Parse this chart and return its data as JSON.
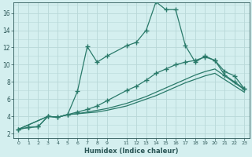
{
  "xlabel": "Humidex (Indice chaleur)",
  "bg_color": "#d4efef",
  "line_color": "#2a7a6a",
  "grid_color": "#b8d8d8",
  "xlim": [
    -0.5,
    23.5
  ],
  "ylim": [
    1.5,
    17.2
  ],
  "yticks": [
    2,
    4,
    6,
    8,
    10,
    12,
    14,
    16
  ],
  "xtick_positions": [
    0,
    1,
    2,
    3,
    4,
    5,
    6,
    7,
    8,
    9,
    11,
    12,
    13,
    14,
    15,
    16,
    17,
    18,
    19,
    20,
    21,
    22,
    23
  ],
  "xtick_labels": [
    "0",
    "1",
    "2",
    "3",
    "4",
    "5",
    "6",
    "7",
    "8",
    "9",
    "11",
    "12",
    "13",
    "14",
    "15",
    "16",
    "17",
    "18",
    "19",
    "20",
    "21",
    "22",
    "23"
  ],
  "line1_x": [
    0,
    1,
    2,
    3,
    4,
    5,
    6,
    7,
    8,
    9,
    11,
    12,
    13,
    14,
    15,
    16,
    17,
    18,
    19,
    20,
    21,
    22,
    23
  ],
  "line1_y": [
    2.5,
    2.7,
    2.8,
    4.0,
    3.9,
    4.2,
    6.9,
    12.1,
    10.3,
    11.0,
    12.2,
    12.6,
    14.0,
    17.3,
    16.4,
    16.4,
    12.2,
    10.3,
    11.0,
    10.5,
    9.2,
    8.7,
    7.2
  ],
  "line2_x": [
    0,
    1,
    2,
    3,
    4,
    5,
    6,
    7,
    8,
    9,
    11,
    12,
    13,
    14,
    15,
    16,
    17,
    18,
    19,
    20,
    21,
    22,
    23
  ],
  "line2_y": [
    2.5,
    2.7,
    2.8,
    4.0,
    3.9,
    4.2,
    4.5,
    4.8,
    5.2,
    5.8,
    7.0,
    7.5,
    8.2,
    9.0,
    9.5,
    10.0,
    10.3,
    10.5,
    10.9,
    10.5,
    8.8,
    8.0,
    7.2
  ],
  "line3_x": [
    0,
    3,
    4,
    5,
    6,
    7,
    8,
    9,
    11,
    12,
    13,
    14,
    15,
    16,
    17,
    18,
    19,
    20,
    23
  ],
  "line3_y": [
    2.5,
    4.0,
    3.9,
    4.2,
    4.3,
    4.5,
    4.7,
    4.9,
    5.5,
    5.9,
    6.3,
    6.8,
    7.3,
    7.8,
    8.3,
    8.8,
    9.2,
    9.5,
    7.1
  ],
  "line4_x": [
    0,
    3,
    4,
    5,
    6,
    7,
    8,
    9,
    11,
    12,
    13,
    14,
    15,
    16,
    17,
    18,
    19,
    20,
    23
  ],
  "line4_y": [
    2.5,
    4.0,
    3.9,
    4.2,
    4.3,
    4.4,
    4.5,
    4.7,
    5.2,
    5.6,
    6.0,
    6.4,
    6.9,
    7.4,
    7.9,
    8.3,
    8.7,
    9.0,
    6.8
  ]
}
